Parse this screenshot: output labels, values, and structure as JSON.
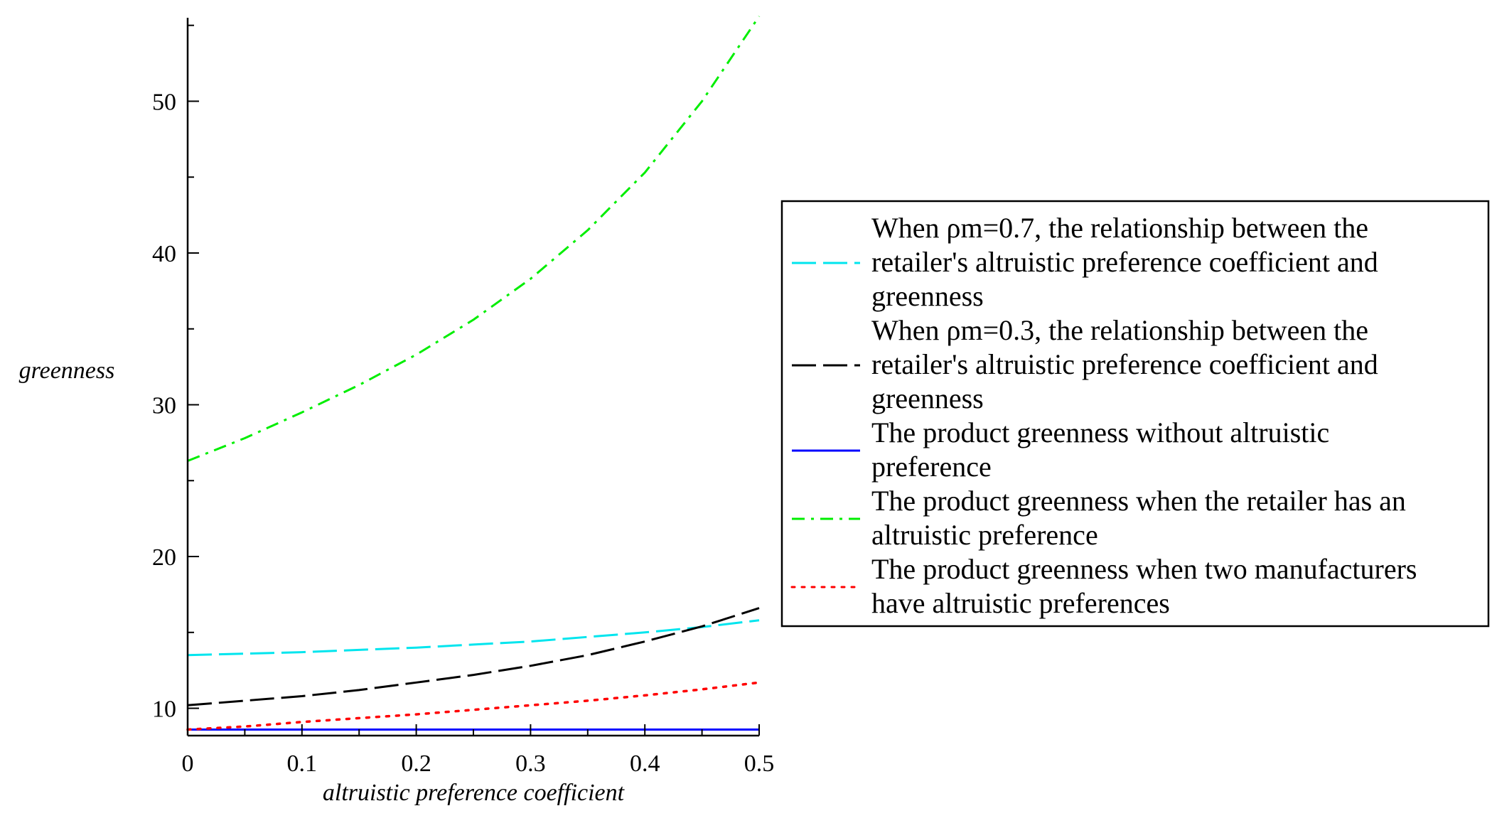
{
  "chart_data": {
    "type": "line",
    "xlabel": "altruistic preference coefficient",
    "ylabel": "greenness",
    "xlim": [
      0,
      0.5
    ],
    "ylim": [
      8.2,
      55.5
    ],
    "xticks": [
      0,
      0.1,
      0.2,
      0.3,
      0.4,
      0.5
    ],
    "yticks": [
      10,
      20,
      30,
      40,
      50
    ],
    "grid": false,
    "legend_position": "right",
    "x": [
      0,
      0.05,
      0.1,
      0.15,
      0.2,
      0.25,
      0.3,
      0.35,
      0.4,
      0.45,
      0.5
    ],
    "series": [
      {
        "name": "When ρm=0.7, the relationship between the retailer's altruistic preference coefficient and greenness",
        "legend_lines": [
          "When ρm=0.7, the relationship between the",
          "retailer's altruistic preference coefficient and",
          "greenness"
        ],
        "color": "#00e5ee",
        "dash": "long-dash",
        "values": [
          13.5,
          13.6,
          13.7,
          13.85,
          14.0,
          14.2,
          14.4,
          14.7,
          15.0,
          15.35,
          15.8
        ]
      },
      {
        "name": "When ρm=0.3, the relationship between the retailer's altruistic preference coefficient and greenness",
        "legend_lines": [
          "When ρm=0.3, the relationship between the",
          "retailer's altruistic preference coefficient and",
          "greenness"
        ],
        "color": "#000000",
        "dash": "long-dash",
        "values": [
          10.2,
          10.5,
          10.8,
          11.2,
          11.7,
          12.2,
          12.8,
          13.5,
          14.4,
          15.4,
          16.6
        ]
      },
      {
        "name": "The product greenness without altruistic preference",
        "legend_lines": [
          "The product greenness without altruistic",
          "preference"
        ],
        "color": "#0000ff",
        "dash": "solid",
        "values": [
          8.6,
          8.6,
          8.6,
          8.6,
          8.6,
          8.6,
          8.6,
          8.6,
          8.6,
          8.6,
          8.6
        ]
      },
      {
        "name": "The product greenness when the retailer has an altruistic preference",
        "legend_lines": [
          "The product greenness when the retailer has an",
          "altruistic preference"
        ],
        "color": "#00ee00",
        "dash": "dash-dot",
        "values": [
          26.3,
          27.8,
          29.5,
          31.3,
          33.3,
          35.6,
          38.3,
          41.5,
          45.3,
          50.0,
          55.6
        ]
      },
      {
        "name": "The product greenness when two manufacturers have altruistic preferences",
        "legend_lines": [
          "The product greenness when two manufacturers",
          "have altruistic preferences"
        ],
        "color": "#ff0000",
        "dash": "dotted",
        "values": [
          8.6,
          8.8,
          9.1,
          9.35,
          9.6,
          9.9,
          10.2,
          10.5,
          10.85,
          11.25,
          11.7
        ]
      }
    ]
  }
}
